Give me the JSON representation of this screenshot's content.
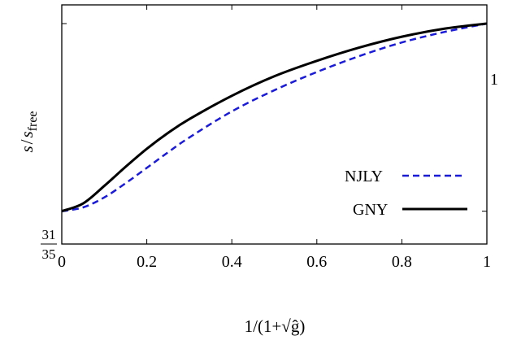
{
  "chart_data": {
    "type": "line",
    "title": "",
    "xlabel": "1/(1+√ĝ)",
    "ylabel_main": "s",
    "ylabel_slash": "/",
    "ylabel_denom": "s",
    "ylabel_sub": "free",
    "xlim": [
      0,
      1
    ],
    "ylim": [
      0.8657,
      1.0114
    ],
    "x_ticks": [
      0,
      0.2,
      0.4,
      0.6,
      0.8,
      1
    ],
    "x_tick_labels": [
      "0",
      "0.2",
      "0.4",
      "0.6",
      "0.8",
      "1"
    ],
    "y_tick_labels": {
      "low_numerator": "31",
      "low_denominator": "35",
      "high": "1"
    },
    "y_ticks": [
      0.8857,
      1.0
    ],
    "grid": false,
    "legend_position": "lower-right",
    "series": [
      {
        "name": "NJLY",
        "color": "#1a1adb",
        "style": "dashed",
        "x": [
          0,
          0.05,
          0.1,
          0.15,
          0.2,
          0.25,
          0.3,
          0.4,
          0.5,
          0.6,
          0.7,
          0.8,
          0.9,
          1.0
        ],
        "y": [
          0.8857,
          0.888,
          0.8941,
          0.9027,
          0.9121,
          0.9216,
          0.9306,
          0.9465,
          0.9594,
          0.9705,
          0.9802,
          0.9885,
          0.9949,
          1.0
        ]
      },
      {
        "name": "GNY",
        "color": "#000000",
        "style": "solid",
        "x": [
          0,
          0.05,
          0.1,
          0.15,
          0.2,
          0.25,
          0.3,
          0.4,
          0.5,
          0.6,
          0.7,
          0.8,
          0.9,
          1.0
        ],
        "y": [
          0.8857,
          0.8904,
          0.9011,
          0.9127,
          0.9237,
          0.9334,
          0.9418,
          0.956,
          0.9679,
          0.9773,
          0.9854,
          0.992,
          0.9969,
          1.0
        ]
      }
    ]
  }
}
